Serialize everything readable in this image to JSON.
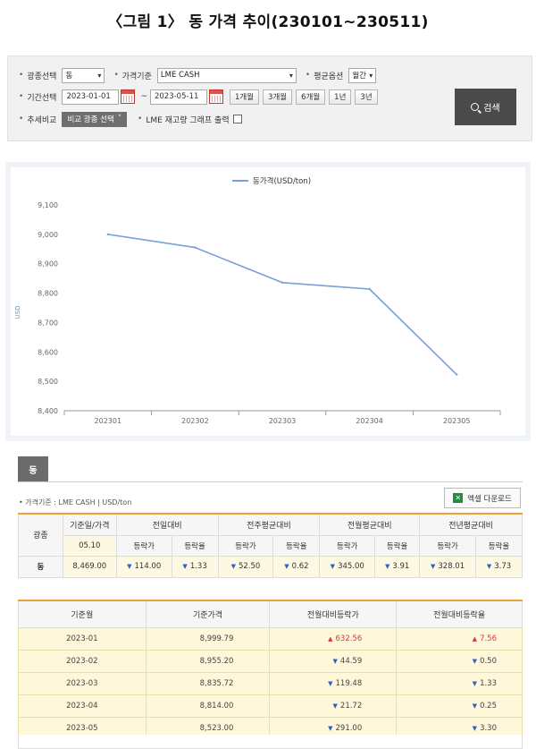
{
  "figure_title": "〈그림 1〉 동 가격 추이(230101~230511)",
  "filters": {
    "metal_label": "광종선택",
    "metal_value": "동",
    "price_basis_label": "가격기준",
    "price_basis_value": "LME CASH",
    "avg_option_label": "평균옵션",
    "avg_option_value": "월간",
    "period_label": "기간선택",
    "date_from": "2023-01-01",
    "date_sep": "~",
    "date_to": "2023-05-11",
    "period_buttons": [
      "1개월",
      "3개월",
      "6개월",
      "1년",
      "3년"
    ],
    "trend_compare_label": "추세비교",
    "compare_button": "비교 광종 선택",
    "lme_stock_label": "LME 재고량 그래프 출력",
    "search_button": "검색"
  },
  "chart_data": {
    "type": "line",
    "x": [
      "202301",
      "202302",
      "202303",
      "202304",
      "202305"
    ],
    "series": [
      {
        "name": "동가격(USD/ton)",
        "values": [
          8999.79,
          8955.2,
          8835.72,
          8814.0,
          8523.0
        ],
        "color": "#7aa0d8"
      }
    ],
    "ylabel": "USD",
    "ylim": [
      8400,
      9100
    ],
    "yticks": [
      "8,400",
      "8,500",
      "8,600",
      "8,700",
      "8,800",
      "8,900",
      "9,000",
      "9,100"
    ],
    "grid": false,
    "legend_position": "top-center"
  },
  "section": {
    "tab_label": "동",
    "unit_text": "• 가격기준 : LME CASH  |  USD/ton",
    "excel_button": "엑셀 다운로드"
  },
  "summary_table": {
    "metal_header": "광종",
    "date_price_header": "기준일/가격",
    "group_headers": [
      "전일대비",
      "전주평균대비",
      "전월평균대비",
      "전년평균대비"
    ],
    "sub_headers": [
      "등락가",
      "등락율"
    ],
    "date": "05.10",
    "metal": "동",
    "price": "8,469.00",
    "changes": [
      {
        "amount": "114.00",
        "rate": "1.33"
      },
      {
        "amount": "52.50",
        "rate": "0.62"
      },
      {
        "amount": "345.00",
        "rate": "3.91"
      },
      {
        "amount": "328.01",
        "rate": "3.73"
      }
    ]
  },
  "monthly_table": {
    "headers": [
      "기준월",
      "기준가격",
      "전월대비등락가",
      "전월대비등락율"
    ],
    "rows": [
      {
        "month": "2023-01",
        "price": "8,999.79",
        "dir": "up",
        "change": "632.56",
        "rate": "7.56"
      },
      {
        "month": "2023-02",
        "price": "8,955.20",
        "dir": "down",
        "change": "44.59",
        "rate": "0.50"
      },
      {
        "month": "2023-03",
        "price": "8,835.72",
        "dir": "down",
        "change": "119.48",
        "rate": "1.33"
      },
      {
        "month": "2023-04",
        "price": "8,814.00",
        "dir": "down",
        "change": "21.72",
        "rate": "0.25"
      },
      {
        "month": "2023-05",
        "price": "8,523.00",
        "dir": "down",
        "change": "291.00",
        "rate": "3.30"
      }
    ]
  }
}
